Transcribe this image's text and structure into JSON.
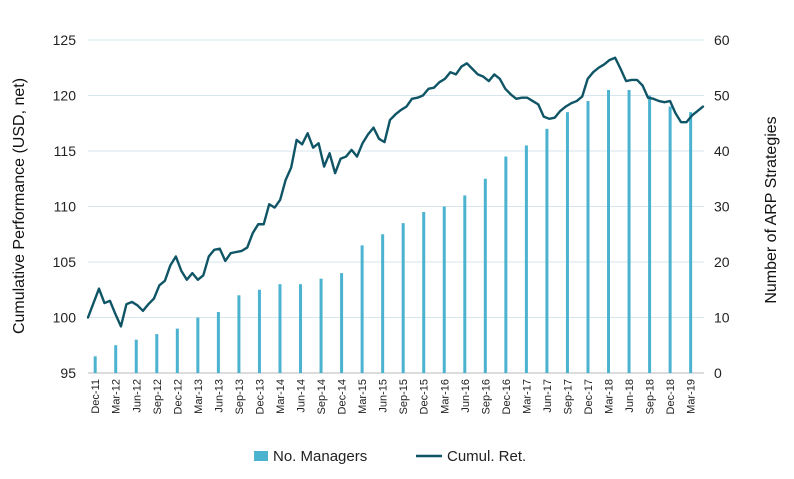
{
  "chart_data": {
    "type": "bar+line",
    "title": "",
    "ylabel_left": "Cumulative Performance (USD, net)",
    "ylabel_right": "Number of ARP Strategies",
    "ylim_left": [
      95,
      125
    ],
    "ylim_right": [
      0,
      60
    ],
    "yticks_left": [
      95,
      100,
      105,
      110,
      115,
      120,
      125
    ],
    "yticks_right": [
      0,
      10,
      20,
      30,
      40,
      50,
      60
    ],
    "grid": true,
    "legend_position": "bottom",
    "x_tick_labels": [
      "Dec-11",
      "Mar-12",
      "Jun-12",
      "Sep-12",
      "Dec-12",
      "Mar-13",
      "Jun-13",
      "Sep-13",
      "Dec-13",
      "Mar-14",
      "Jun-14",
      "Sep-14",
      "Dec-14",
      "Mar-15",
      "Jun-15",
      "Sep-15",
      "Dec-15",
      "Mar-16",
      "Jun-16",
      "Sep-16",
      "Dec-16",
      "Mar-17",
      "Jun-17",
      "Sep-17",
      "Dec-17",
      "Mar-18",
      "Jun-18",
      "Sep-18",
      "Dec-18",
      "Mar-19"
    ],
    "bar_series": {
      "name": "No. Managers",
      "axis": "right",
      "color": "#4bb3cf",
      "values": [
        3,
        5,
        6,
        7,
        8,
        10,
        11,
        14,
        15,
        16,
        16,
        17,
        18,
        23,
        25,
        27,
        29,
        30,
        32,
        35,
        39,
        41,
        44,
        47,
        49,
        51,
        51,
        50,
        48,
        47
      ]
    },
    "line_series": {
      "name": "Cumul. Ret.",
      "axis": "left",
      "color": "#0f5566",
      "values": [
        100,
        101.3,
        102.6,
        101.3,
        101.5,
        100.3,
        99.2,
        101.2,
        101.4,
        101.1,
        100.6,
        101.2,
        101.7,
        102.9,
        103.3,
        104.7,
        105.5,
        104.2,
        103.4,
        104.0,
        103.4,
        103.8,
        105.5,
        106.1,
        106.2,
        105.1,
        105.8,
        105.9,
        106.0,
        106.3,
        107.6,
        108.4,
        108.4,
        110.2,
        109.9,
        110.6,
        112.4,
        113.5,
        116.0,
        115.6,
        116.6,
        115.3,
        115.7,
        113.6,
        114.8,
        113.0,
        114.3,
        114.5,
        115.1,
        114.5,
        115.7,
        116.5,
        117.1,
        116.1,
        115.8,
        117.8,
        118.3,
        118.7,
        119.0,
        119.7,
        119.8,
        120.0,
        120.6,
        120.7,
        121.2,
        121.5,
        122.1,
        121.9,
        122.6,
        122.9,
        122.4,
        121.9,
        121.7,
        121.3,
        121.9,
        121.5,
        120.6,
        120.1,
        119.7,
        119.8,
        119.8,
        119.5,
        119.2,
        118.1,
        117.9,
        118.0,
        118.6,
        119.0,
        119.3,
        119.5,
        119.9,
        121.5,
        122.1,
        122.5,
        122.8,
        123.2,
        123.4,
        122.4,
        121.3,
        121.4,
        121.4,
        120.9,
        119.8,
        119.7,
        119.5,
        119.4,
        119.5,
        118.4,
        117.6,
        117.6,
        118.2,
        118.6,
        119.0
      ]
    }
  }
}
